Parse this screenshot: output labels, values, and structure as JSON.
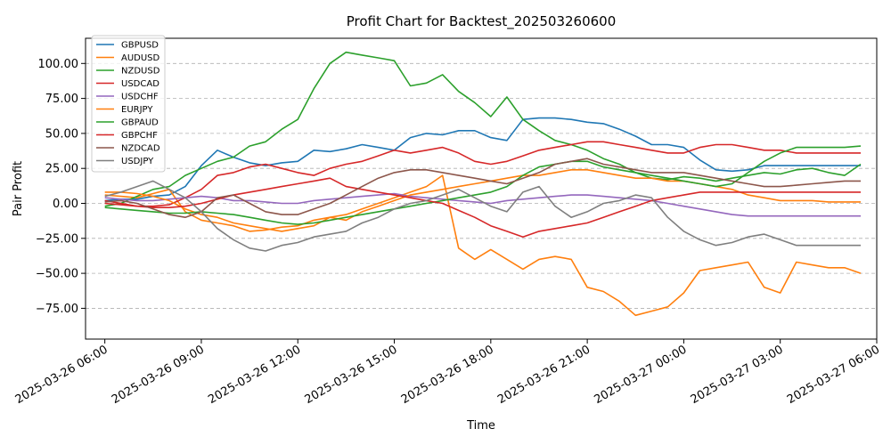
{
  "chart_data": {
    "type": "line",
    "title": "Profit Chart for Backtest_202503260600",
    "xlabel": "Time",
    "ylabel": "Pair Profit",
    "x_ticks": [
      "2025-03-26 06:00",
      "2025-03-26 09:00",
      "2025-03-26 12:00",
      "2025-03-26 15:00",
      "2025-03-26 18:00",
      "2025-03-26 21:00",
      "2025-03-27 00:00",
      "2025-03-27 03:00",
      "2025-03-27 06:00"
    ],
    "y_ticks": [
      "−75.00",
      "−50.00",
      "−25.00",
      "0.00",
      "25.00",
      "50.00",
      "75.00",
      "100.00"
    ],
    "x_hours": [
      0,
      0.5,
      1,
      1.5,
      2,
      2.5,
      3,
      3.5,
      4,
      4.5,
      5,
      5.5,
      6,
      6.5,
      7,
      7.5,
      8,
      8.5,
      9,
      9.5,
      10,
      10.5,
      11,
      11.5,
      12,
      12.5,
      13,
      13.5,
      14,
      14.5,
      15,
      15.5,
      16,
      16.5,
      17,
      17.5,
      18,
      18.5,
      19,
      19.5,
      20,
      20.5,
      21,
      21.5,
      22,
      22.5,
      23,
      23.5
    ],
    "xlim_hours": [
      -0.6,
      24.0
    ],
    "ylim": [
      -97,
      118
    ],
    "grid": "y-dashed",
    "legend_position": "top-left",
    "series": [
      {
        "name": "GBPUSD",
        "color": "#1f77b4",
        "values": [
          2,
          3,
          3,
          5,
          6,
          12,
          27,
          38,
          33,
          29,
          27,
          29,
          30,
          38,
          37,
          39,
          42,
          40,
          38,
          47,
          50,
          49,
          52,
          52,
          47,
          45,
          60,
          61,
          61,
          60,
          58,
          57,
          53,
          48,
          42,
          42,
          40,
          31,
          24,
          23,
          24,
          27,
          27,
          27,
          27,
          27,
          27,
          27
        ]
      },
      {
        "name": "AUDUSD",
        "color": "#ff7f0e",
        "values": [
          6,
          5,
          4,
          7,
          10,
          -6,
          -12,
          -14,
          -16,
          -20,
          -19,
          -17,
          -16,
          -12,
          -10,
          -8,
          -4,
          0,
          4,
          8,
          12,
          20,
          -32,
          -40,
          -33,
          -40,
          -47,
          -40,
          -38,
          -40,
          -60,
          -63,
          -70,
          -80,
          -77,
          -74,
          -64,
          -48,
          -46,
          -44,
          -42,
          -60,
          -64,
          -42,
          -44,
          -46,
          -46,
          -50
        ]
      },
      {
        "name": "NZDUSD",
        "color": "#2ca02c",
        "values": [
          -2,
          0,
          5,
          10,
          12,
          20,
          25,
          30,
          33,
          41,
          44,
          53,
          60,
          82,
          100,
          108,
          106,
          104,
          102,
          84,
          86,
          92,
          80,
          72,
          62,
          76,
          60,
          52,
          45,
          42,
          38,
          32,
          28,
          22,
          18,
          17,
          19,
          18,
          16,
          18,
          20,
          22,
          21,
          24,
          25,
          22,
          20,
          28
        ]
      },
      {
        "name": "USDCAD",
        "color": "#d62728",
        "values": [
          0,
          -1,
          -2,
          -2,
          -1,
          4,
          10,
          20,
          22,
          26,
          28,
          25,
          22,
          20,
          25,
          28,
          30,
          34,
          38,
          36,
          38,
          40,
          36,
          30,
          28,
          30,
          34,
          38,
          40,
          42,
          44,
          44,
          42,
          40,
          38,
          36,
          36,
          40,
          42,
          42,
          40,
          38,
          38,
          36,
          36,
          36,
          36,
          36
        ]
      },
      {
        "name": "USDCHF",
        "color": "#9467bd",
        "values": [
          4,
          3,
          2,
          2,
          3,
          4,
          5,
          4,
          2,
          2,
          1,
          0,
          0,
          2,
          3,
          4,
          5,
          6,
          7,
          5,
          4,
          3,
          2,
          1,
          0,
          2,
          3,
          4,
          5,
          6,
          6,
          5,
          4,
          3,
          2,
          0,
          -2,
          -4,
          -6,
          -8,
          -9,
          -9,
          -9,
          -9,
          -9,
          -9,
          -9,
          -9
        ]
      },
      {
        "name": "EURJPY",
        "color": "#ff7f0e",
        "values": [
          8,
          8,
          7,
          5,
          2,
          -4,
          -8,
          -10,
          -14,
          -16,
          -18,
          -20,
          -18,
          -16,
          -10,
          -12,
          -6,
          -2,
          2,
          6,
          8,
          10,
          12,
          14,
          16,
          18,
          20,
          20,
          22,
          24,
          24,
          22,
          20,
          18,
          18,
          16,
          16,
          14,
          12,
          10,
          6,
          4,
          2,
          2,
          2,
          1,
          1,
          1
        ]
      },
      {
        "name": "GBPAUD",
        "color": "#2ca02c",
        "values": [
          -3,
          -4,
          -5,
          -6,
          -7,
          -7,
          -6,
          -7,
          -8,
          -10,
          -12,
          -14,
          -15,
          -14,
          -12,
          -10,
          -8,
          -6,
          -4,
          -2,
          0,
          2,
          4,
          6,
          8,
          12,
          20,
          26,
          28,
          30,
          30,
          26,
          24,
          22,
          20,
          18,
          16,
          14,
          12,
          14,
          22,
          30,
          36,
          40,
          40,
          40,
          40,
          41
        ]
      },
      {
        "name": "GBPCHF",
        "color": "#d62728",
        "values": [
          2,
          0,
          -2,
          -3,
          -3,
          -2,
          0,
          3,
          6,
          8,
          10,
          12,
          14,
          16,
          18,
          12,
          10,
          8,
          6,
          4,
          2,
          0,
          -5,
          -10,
          -16,
          -20,
          -24,
          -20,
          -18,
          -16,
          -14,
          -10,
          -6,
          -2,
          2,
          4,
          6,
          8,
          8,
          8,
          8,
          8,
          8,
          8,
          8,
          8,
          8,
          8
        ]
      },
      {
        "name": "NZDCAD",
        "color": "#8c564b",
        "values": [
          1,
          2,
          0,
          -4,
          -8,
          -10,
          -6,
          4,
          6,
          0,
          -6,
          -8,
          -8,
          -4,
          0,
          6,
          12,
          18,
          22,
          24,
          24,
          22,
          20,
          18,
          16,
          14,
          18,
          22,
          28,
          30,
          32,
          28,
          26,
          24,
          22,
          22,
          22,
          20,
          18,
          16,
          14,
          12,
          12,
          13,
          14,
          15,
          16,
          16
        ]
      },
      {
        "name": "USDJPY",
        "color": "#7f7f7f",
        "values": [
          5,
          8,
          12,
          16,
          10,
          4,
          -6,
          -18,
          -26,
          -32,
          -34,
          -30,
          -28,
          -24,
          -22,
          -20,
          -14,
          -10,
          -4,
          0,
          2,
          6,
          10,
          4,
          -2,
          -6,
          8,
          12,
          -2,
          -10,
          -6,
          0,
          2,
          6,
          4,
          -10,
          -20,
          -26,
          -30,
          -28,
          -24,
          -22,
          -26,
          -30,
          -30,
          -30,
          -30,
          -30
        ]
      }
    ]
  }
}
